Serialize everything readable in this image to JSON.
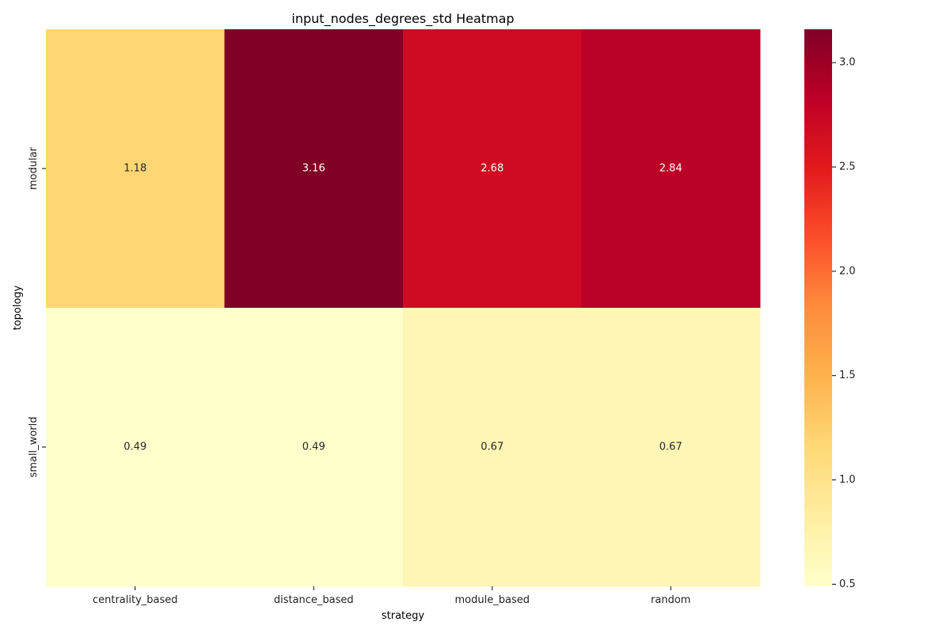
{
  "chart_data": {
    "type": "heatmap",
    "title": "input_nodes_degrees_std Heatmap",
    "xlabel": "strategy",
    "ylabel": "topology",
    "x_categories": [
      "centrality_based",
      "distance_based",
      "module_based",
      "random"
    ],
    "y_categories": [
      "modular",
      "small_world"
    ],
    "values": [
      [
        1.18,
        3.16,
        2.68,
        2.84
      ],
      [
        0.49,
        0.49,
        0.67,
        0.67
      ]
    ],
    "value_labels": [
      [
        "1.18",
        "3.16",
        "2.68",
        "2.84"
      ],
      [
        "0.49",
        "0.49",
        "0.67",
        "0.67"
      ]
    ],
    "colormap": "YlOrRd",
    "vmin": 0.49,
    "vmax": 3.16,
    "colorbar": {
      "ticks": [
        0.5,
        1.0,
        1.5,
        2.0,
        2.5,
        3.0
      ],
      "tick_labels": [
        "0.5",
        "1.0",
        "1.5",
        "2.0",
        "2.5",
        "3.0"
      ]
    }
  }
}
